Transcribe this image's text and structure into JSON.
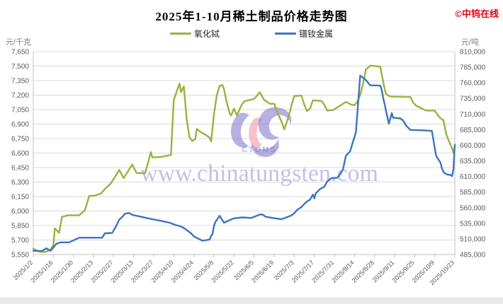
{
  "header": {
    "title": "2025年1-10月稀土制品价格走势图",
    "brand": "©中钨在线"
  },
  "watermark": {
    "url": "www.chinatungsten.com",
    "logo_text": "CTOMS",
    "text_color": "rgba(148,139,214,0.55)",
    "logo_blue": "rgba(122,113,201,0.55)",
    "logo_pink": "rgba(242,152,172,0.60)"
  },
  "chart_data": {
    "type": "line",
    "title": "2025年1-10月稀土制品价格走势图",
    "x_start": "1/2",
    "x_end": "10/23",
    "year": 2025,
    "grid": true,
    "legend_position": "top-center",
    "axes": {
      "left": {
        "unit": "元/千克",
        "min": 5550,
        "max": 7650,
        "step": 150,
        "labels": [
          "7,650",
          "7,500",
          "7,350",
          "7,200",
          "7,050",
          "6,900",
          "6,750",
          "6,600",
          "6,450",
          "6,300",
          "6,150",
          "6,000",
          "5,850",
          "5,700",
          "5,550"
        ]
      },
      "right": {
        "unit": "元/吨",
        "min": 485000,
        "max": 810000,
        "step": 25000,
        "labels": [
          "810,000",
          "785,000",
          "760,000",
          "735,000",
          "710,000",
          "685,000",
          "660,000",
          "635,000",
          "610,000",
          "585,000",
          "560,000",
          "535,000",
          "510,000",
          "485,000"
        ]
      },
      "x": {
        "labels": [
          "2025/1/2",
          "2025/1/16",
          "2025/1/30",
          "2025/2/13",
          "2025/2/27",
          "2025/3/13",
          "2025/3/27",
          "2025/4/10",
          "2025/4/24",
          "2025/5/8",
          "2025/5/22",
          "2025/6/5",
          "2025/6/19",
          "2025/7/3",
          "2025/7/17",
          "2025/7/31",
          "2025/8/14",
          "2025/8/28",
          "2025/9/11",
          "2025/9/25",
          "2025/10/9",
          "2025/10/23"
        ]
      }
    },
    "series": [
      {
        "id": "terbium-oxide-line",
        "name": "氧化铽",
        "axis": "left",
        "unit": "元/千克",
        "color": "#97B33F",
        "points": [
          [
            "1/2",
            5610
          ],
          [
            "1/6",
            5580
          ],
          [
            "1/10",
            5575
          ],
          [
            "1/14",
            5600
          ],
          [
            "1/16",
            5650
          ],
          [
            "1/17",
            5820
          ],
          [
            "1/20",
            5775
          ],
          [
            "1/22",
            5940
          ],
          [
            "1/26",
            5955
          ],
          [
            "2/3",
            5955
          ],
          [
            "2/7",
            6010
          ],
          [
            "2/10",
            6155
          ],
          [
            "2/14",
            6160
          ],
          [
            "2/18",
            6180
          ],
          [
            "2/21",
            6230
          ],
          [
            "2/25",
            6285
          ],
          [
            "3/3",
            6425
          ],
          [
            "3/6",
            6340
          ],
          [
            "3/12",
            6480
          ],
          [
            "3/15",
            6395
          ],
          [
            "3/21",
            6390
          ],
          [
            "3/25",
            6610
          ],
          [
            "3/26",
            6555
          ],
          [
            "4/1",
            6560
          ],
          [
            "4/8",
            6580
          ],
          [
            "4/10",
            7150
          ],
          [
            "4/14",
            7320
          ],
          [
            "4/15",
            7230
          ],
          [
            "4/17",
            7290
          ],
          [
            "4/19",
            6950
          ],
          [
            "4/21",
            6760
          ],
          [
            "4/23",
            6725
          ],
          [
            "4/25",
            6745
          ],
          [
            "4/26",
            6850
          ],
          [
            "4/29",
            6815
          ],
          [
            "5/2",
            6790
          ],
          [
            "5/5",
            6760
          ],
          [
            "5/6",
            6720
          ],
          [
            "5/8",
            7000
          ],
          [
            "5/10",
            7200
          ],
          [
            "5/12",
            7295
          ],
          [
            "5/14",
            7305
          ],
          [
            "5/15",
            7260
          ],
          [
            "5/17",
            7120
          ],
          [
            "5/19",
            7010
          ],
          [
            "5/20",
            6990
          ],
          [
            "5/22",
            7060
          ],
          [
            "5/24",
            6990
          ],
          [
            "5/27",
            7090
          ],
          [
            "5/29",
            7135
          ],
          [
            "6/2",
            7150
          ],
          [
            "6/5",
            7160
          ],
          [
            "6/9",
            7230
          ],
          [
            "6/12",
            7150
          ],
          [
            "6/16",
            7110
          ],
          [
            "6/19",
            7110
          ],
          [
            "6/21",
            7030
          ],
          [
            "6/24",
            6930
          ],
          [
            "6/26",
            6845
          ],
          [
            "6/28",
            6930
          ],
          [
            "6/30",
            7030
          ],
          [
            "7/1",
            7090
          ],
          [
            "7/3",
            7190
          ],
          [
            "7/8",
            7195
          ],
          [
            "7/10",
            7100
          ],
          [
            "7/12",
            7035
          ],
          [
            "7/14",
            7060
          ],
          [
            "7/16",
            7145
          ],
          [
            "7/22",
            7140
          ],
          [
            "7/24",
            7100
          ],
          [
            "7/26",
            7040
          ],
          [
            "7/30",
            7045
          ],
          [
            "8/4",
            7090
          ],
          [
            "8/8",
            7130
          ],
          [
            "8/12",
            7100
          ],
          [
            "8/14",
            7095
          ],
          [
            "8/16",
            7130
          ],
          [
            "8/18",
            7200
          ],
          [
            "8/20",
            7320
          ],
          [
            "8/22",
            7465
          ],
          [
            "8/25",
            7505
          ],
          [
            "9/1",
            7495
          ],
          [
            "9/2",
            7415
          ],
          [
            "9/3",
            7345
          ],
          [
            "9/4",
            7270
          ],
          [
            "9/5",
            7210
          ],
          [
            "9/8",
            7185
          ],
          [
            "9/22",
            7180
          ],
          [
            "9/24",
            7120
          ],
          [
            "9/26",
            7090
          ],
          [
            "10/3",
            7040
          ],
          [
            "10/9",
            7040
          ],
          [
            "10/11",
            6995
          ],
          [
            "10/13",
            6960
          ],
          [
            "10/15",
            6940
          ],
          [
            "10/16",
            6870
          ],
          [
            "10/17",
            6795
          ],
          [
            "10/19",
            6720
          ],
          [
            "10/21",
            6650
          ],
          [
            "10/22",
            6600
          ],
          [
            "10/23",
            6670
          ]
        ]
      },
      {
        "id": "prnd-metal-line",
        "name": "镨钕金属",
        "axis": "right",
        "unit": "元/吨",
        "color": "#3D74BF",
        "points": [
          [
            "1/2",
            491000
          ],
          [
            "1/8",
            490500
          ],
          [
            "1/11",
            495000
          ],
          [
            "1/14",
            491000
          ],
          [
            "1/16",
            496000
          ],
          [
            "1/18",
            502000
          ],
          [
            "1/21",
            504500
          ],
          [
            "1/27",
            504500
          ],
          [
            "2/3",
            512000
          ],
          [
            "2/19",
            512000
          ],
          [
            "2/21",
            519000
          ],
          [
            "2/26",
            519500
          ],
          [
            "2/28",
            527000
          ],
          [
            "3/3",
            541000
          ],
          [
            "3/5",
            545000
          ],
          [
            "3/7",
            550500
          ],
          [
            "3/10",
            551500
          ],
          [
            "3/12",
            548500
          ],
          [
            "3/17",
            546000
          ],
          [
            "3/21",
            544000
          ],
          [
            "3/26",
            541500
          ],
          [
            "4/1",
            539000
          ],
          [
            "4/7",
            536000
          ],
          [
            "4/11",
            532500
          ],
          [
            "4/15",
            530000
          ],
          [
            "4/18",
            526000
          ],
          [
            "4/22",
            519000
          ],
          [
            "4/24",
            514000
          ],
          [
            "4/28",
            509500
          ],
          [
            "4/30",
            507000
          ],
          [
            "5/5",
            509000
          ],
          [
            "5/6",
            515000
          ],
          [
            "5/7",
            518000
          ],
          [
            "5/8",
            531000
          ],
          [
            "5/9",
            537000
          ],
          [
            "5/12",
            547000
          ],
          [
            "5/13",
            543000
          ],
          [
            "5/15",
            536000
          ],
          [
            "5/19",
            540000
          ],
          [
            "5/22",
            543000
          ],
          [
            "5/28",
            544500
          ],
          [
            "6/3",
            543500
          ],
          [
            "6/9",
            549000
          ],
          [
            "6/11",
            549000
          ],
          [
            "6/13",
            545500
          ],
          [
            "6/18",
            543500
          ],
          [
            "6/24",
            541500
          ],
          [
            "6/27",
            544000
          ],
          [
            "7/1",
            547500
          ],
          [
            "7/3",
            551000
          ],
          [
            "7/5",
            556500
          ],
          [
            "7/8",
            561000
          ],
          [
            "7/10",
            566000
          ],
          [
            "7/12",
            570000
          ],
          [
            "7/14",
            573000
          ],
          [
            "7/16",
            581000
          ],
          [
            "7/17",
            575000
          ],
          [
            "7/18",
            583000
          ],
          [
            "7/21",
            590000
          ],
          [
            "7/24",
            593500
          ],
          [
            "7/26",
            602000
          ],
          [
            "7/29",
            607500
          ],
          [
            "8/2",
            608000
          ],
          [
            "8/4",
            613500
          ],
          [
            "8/6",
            621000
          ],
          [
            "8/8",
            643000
          ],
          [
            "8/11",
            650500
          ],
          [
            "8/13",
            666000
          ],
          [
            "8/14",
            673000
          ],
          [
            "8/15",
            681000
          ],
          [
            "8/18",
            771500
          ],
          [
            "8/20",
            768000
          ],
          [
            "8/22",
            764500
          ],
          [
            "8/25",
            756000
          ],
          [
            "9/1",
            755500
          ],
          [
            "9/2",
            749000
          ],
          [
            "9/3",
            736000
          ],
          [
            "9/4",
            726500
          ],
          [
            "9/5",
            715000
          ],
          [
            "9/7",
            694500
          ],
          [
            "9/9",
            711500
          ],
          [
            "9/10",
            704000
          ],
          [
            "9/15",
            703000
          ],
          [
            "9/17",
            699500
          ],
          [
            "9/19",
            691500
          ],
          [
            "9/22",
            684500
          ],
          [
            "10/1",
            684000
          ],
          [
            "10/7",
            683000
          ],
          [
            "10/8",
            670000
          ],
          [
            "10/9",
            655000
          ],
          [
            "10/10",
            643000
          ],
          [
            "10/13",
            632000
          ],
          [
            "10/14",
            623000
          ],
          [
            "10/15",
            617500
          ],
          [
            "10/16",
            615000
          ],
          [
            "10/18",
            613000
          ],
          [
            "10/20",
            612500
          ],
          [
            "10/21",
            610500
          ],
          [
            "10/22",
            621000
          ],
          [
            "10/23",
            661000
          ]
        ]
      }
    ]
  }
}
